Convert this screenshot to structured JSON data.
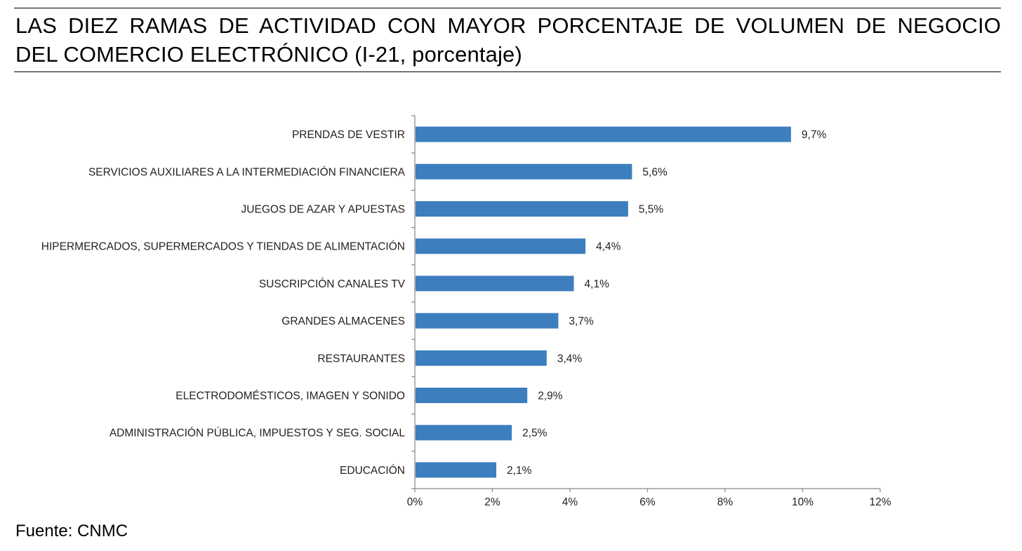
{
  "header": {
    "title_line1": "LAS DIEZ RAMAS DE ACTIVIDAD CON MAYOR PORCENTAJE DE VOLUMEN DE NEGOCIO",
    "title_line2": "DEL COMERCIO ELECTRÓNICO (I-21, porcentaje)"
  },
  "footer": {
    "source": "Fuente: CNMC"
  },
  "colors": {
    "bar": "#3d7ebf",
    "axis": "#868686",
    "text": "#222222"
  },
  "chart_data": {
    "type": "bar",
    "orientation": "horizontal",
    "title": "LAS DIEZ RAMAS DE ACTIVIDAD CON MAYOR PORCENTAJE DE VOLUMEN DE NEGOCIO DEL COMERCIO ELECTRÓNICO (I-21, porcentaje)",
    "categories": [
      "PRENDAS DE VESTIR",
      "SERVICIOS AUXILIARES A LA INTERMEDIACIÓN FINANCIERA",
      "JUEGOS DE AZAR Y APUESTAS",
      "HIPERMERCADOS, SUPERMERCADOS Y TIENDAS DE ALIMENTACIÓN",
      "SUSCRIPCIÓN CANALES TV",
      "GRANDES ALMACENES",
      "RESTAURANTES",
      "ELECTRODOMÉSTICOS,  IMAGEN Y SONIDO",
      "ADMINISTRACIÓN PÚBLICA, IMPUESTOS Y SEG. SOCIAL",
      "EDUCACIÓN"
    ],
    "values": [
      9.7,
      5.6,
      5.5,
      4.4,
      4.1,
      3.7,
      3.4,
      2.9,
      2.5,
      2.1
    ],
    "value_labels": [
      "9,7%",
      "5,6%",
      "5,5%",
      "4,4%",
      "4,1%",
      "3,7%",
      "3,4%",
      "2,9%",
      "2,5%",
      "2,1%"
    ],
    "xlim": [
      0,
      12
    ],
    "xticks": [
      0,
      2,
      4,
      6,
      8,
      10,
      12
    ],
    "xtick_labels": [
      "0%",
      "2%",
      "4%",
      "6%",
      "8%",
      "10%",
      "12%"
    ],
    "xlabel": "",
    "ylabel": "",
    "grid": false,
    "legend": "none"
  }
}
